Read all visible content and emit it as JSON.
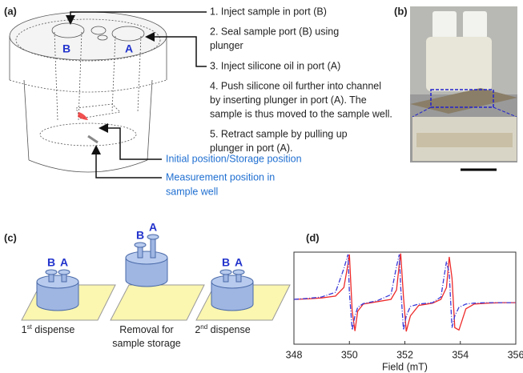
{
  "panels": {
    "a": {
      "label": "(a)",
      "port_b": "B",
      "port_a": "A",
      "steps": [
        [
          "1. Inject sample in port (B)"
        ],
        [
          "2. Seal sample port (B) using",
          "plunger"
        ],
        [
          "3. Inject silicone oil in port (A)"
        ],
        [
          "4. Push silicone oil further into channel",
          "by inserting plunger in port (A). The",
          "sample is thus moved to the sample well."
        ],
        [
          "5. Retract sample by pulling up",
          "plunger in port (A)."
        ]
      ],
      "positions": [
        [
          "Initial position/Storage position"
        ],
        [
          "Measurement position in",
          "sample well"
        ]
      ]
    },
    "b": {
      "label": "(b)"
    },
    "c": {
      "label": "(c)",
      "stages": [
        {
          "port_b": "B",
          "port_a": "A",
          "caption": [
            {
              "main": "1",
              "sup": "st",
              "rest": " dispense"
            }
          ]
        },
        {
          "port_b": "B",
          "port_a": "A",
          "caption": [
            {
              "main": "Removal for"
            },
            {
              "main": "sample storage"
            }
          ]
        },
        {
          "port_b": "B",
          "port_a": "A",
          "caption": [
            {
              "main": "2",
              "sup": "nd",
              "rest": " dispense"
            }
          ]
        }
      ]
    },
    "d": {
      "label": "(d)"
    }
  },
  "chart_data": {
    "type": "line",
    "xlabel": "Field (mT)",
    "x": [
      348,
      348.5,
      349,
      349.5,
      349.8,
      349.95,
      350.0,
      350.1,
      350.2,
      350.3,
      350.5,
      351,
      351.5,
      351.7,
      351.8,
      351.85,
      351.95,
      352.05,
      352.2,
      352.5,
      353,
      353.3,
      353.5,
      353.6,
      353.7,
      353.8,
      353.95,
      354.2,
      354.5,
      355,
      355.5,
      356
    ],
    "series": [
      {
        "color": "#ee2a2a",
        "dash": false,
        "values": [
          0.05,
          0.06,
          0.08,
          0.12,
          0.3,
          0.8,
          1.0,
          -0.2,
          -0.62,
          -0.2,
          -0.05,
          0.0,
          0.05,
          0.25,
          0.8,
          1.02,
          0.1,
          -0.63,
          -0.3,
          -0.08,
          -0.03,
          0.05,
          0.3,
          0.95,
          0.5,
          -0.55,
          -0.6,
          -0.15,
          -0.05,
          -0.03,
          -0.02,
          -0.02
        ]
      },
      {
        "color": "#3a3ad8",
        "dash": true,
        "values": [
          0.05,
          0.07,
          0.1,
          0.2,
          0.7,
          1.0,
          0.2,
          -0.6,
          -0.3,
          -0.12,
          -0.04,
          0.02,
          0.15,
          0.75,
          1.0,
          0.3,
          -0.6,
          -0.3,
          -0.1,
          -0.05,
          -0.02,
          0.1,
          0.85,
          0.6,
          -0.55,
          -0.3,
          -0.12,
          -0.05,
          -0.03,
          -0.02,
          -0.02,
          -0.02
        ]
      }
    ],
    "xlim": [
      348,
      356
    ],
    "xticks": [
      348,
      350,
      352,
      354,
      356
    ],
    "ylim": [
      -0.9,
      1.05
    ]
  }
}
